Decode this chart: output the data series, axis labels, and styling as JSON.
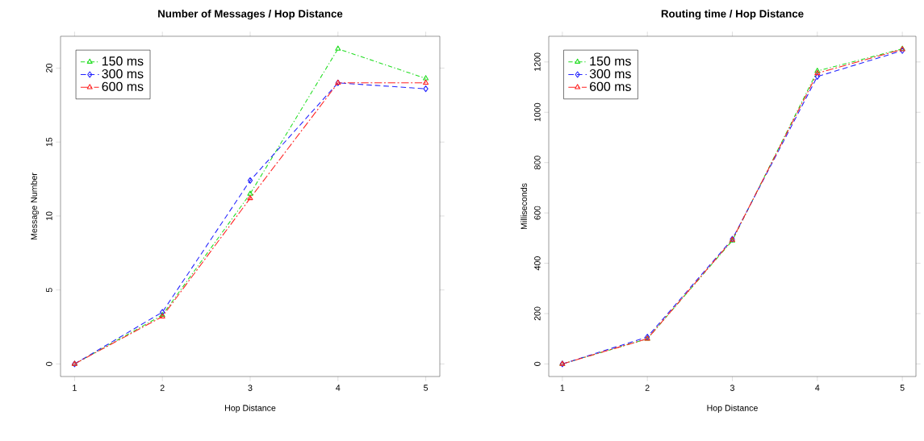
{
  "chart_data": [
    {
      "type": "line",
      "title": "Number of Messages / Hop Distance",
      "xlabel": "Hop Distance",
      "ylabel": "Message Number",
      "x": [
        1,
        2,
        3,
        4,
        5
      ],
      "xlim": [
        0.84,
        5.16
      ],
      "xticks": [
        1,
        2,
        3,
        4,
        5
      ],
      "ylim": [
        -0.85,
        22.15
      ],
      "yticks": [
        0,
        5,
        10,
        15,
        20
      ],
      "legend": "top left",
      "grid": false,
      "series": [
        {
          "name": "150 ms",
          "color": "#22dd22",
          "marker": "triangle",
          "line_style": "dashdot",
          "values": [
            0,
            3.3,
            11.5,
            21.3,
            19.3
          ]
        },
        {
          "name": "300 ms",
          "color": "#2222ff",
          "marker": "diamond",
          "line_style": "dashed",
          "values": [
            0,
            3.5,
            12.4,
            19.0,
            18.6
          ]
        },
        {
          "name": "600 ms",
          "color": "#ff2222",
          "marker": "triangle down",
          "line_style": "longdashdot",
          "values": [
            0,
            3.2,
            11.2,
            19.0,
            19.0
          ]
        }
      ]
    },
    {
      "type": "line",
      "title": "Routing time / Hop Distance",
      "xlabel": "Hop Distance",
      "ylabel": "Milliseconds",
      "x": [
        1,
        2,
        3,
        4,
        5
      ],
      "xlim": [
        0.84,
        5.16
      ],
      "xticks": [
        1,
        2,
        3,
        4,
        5
      ],
      "ylim": [
        -50,
        1302
      ],
      "yticks": [
        0,
        200,
        400,
        600,
        800,
        1000,
        1200
      ],
      "legend": "top left",
      "grid": false,
      "series": [
        {
          "name": "150 ms",
          "color": "#22dd22",
          "marker": "triangle",
          "line_style": "dashdot",
          "values": [
            0,
            100,
            490,
            1164,
            1252
          ]
        },
        {
          "name": "300 ms",
          "color": "#2222ff",
          "marker": "diamond",
          "line_style": "dashed",
          "values": [
            0,
            107,
            496,
            1142,
            1245
          ]
        },
        {
          "name": "600 ms",
          "color": "#ff2222",
          "marker": "triangle down",
          "line_style": "longdashdot",
          "values": [
            0,
            100,
            493,
            1155,
            1250
          ]
        }
      ]
    }
  ]
}
